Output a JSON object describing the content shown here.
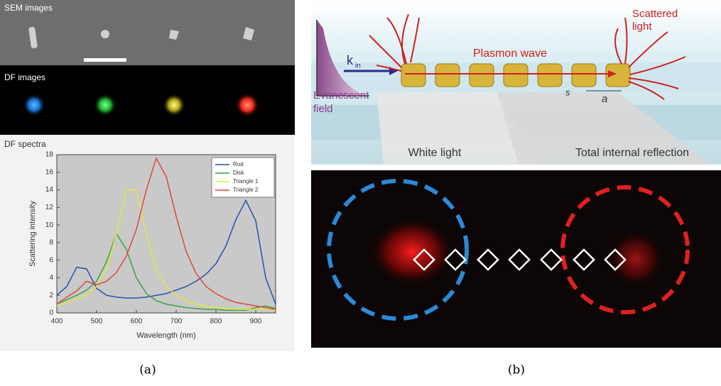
{
  "chart_data": {
    "type": "line",
    "title": "DF spectra",
    "x_label": "Wavelength (nm)",
    "y_label": "Scattering intensity",
    "x": [
      400,
      425,
      450,
      475,
      500,
      525,
      550,
      575,
      600,
      625,
      650,
      675,
      700,
      725,
      750,
      775,
      800,
      825,
      850,
      875,
      900,
      925,
      950
    ],
    "series": [
      {
        "name": "Rod",
        "color": "#2a4fb0",
        "values": [
          2.0,
          3.0,
          5.2,
          5.0,
          2.8,
          2.0,
          1.8,
          1.7,
          1.7,
          1.8,
          2.0,
          2.2,
          2.6,
          3.0,
          3.6,
          4.4,
          5.6,
          7.6,
          10.6,
          12.8,
          10.5,
          4.0,
          1.0
        ]
      },
      {
        "name": "Disk",
        "color": "#3aa346",
        "values": [
          1.0,
          1.5,
          2.0,
          2.6,
          3.6,
          5.8,
          9.0,
          7.2,
          4.0,
          2.2,
          1.4,
          1.0,
          0.8,
          0.6,
          0.5,
          0.4,
          0.4,
          0.3,
          0.3,
          0.3,
          0.6,
          0.8,
          0.5
        ]
      },
      {
        "name": "Triangle 1",
        "color": "#e6e63a",
        "values": [
          0.8,
          1.2,
          1.6,
          2.0,
          3.0,
          5.0,
          9.0,
          14.0,
          14.0,
          9.0,
          5.0,
          3.0,
          2.0,
          1.4,
          1.0,
          0.8,
          0.6,
          0.5,
          0.4,
          0.4,
          0.4,
          0.5,
          0.3
        ]
      },
      {
        "name": "Triangle 2",
        "color": "#e0453e",
        "values": [
          1.0,
          1.8,
          2.5,
          3.6,
          3.2,
          3.6,
          4.6,
          6.5,
          9.5,
          14.0,
          17.6,
          15.5,
          11.0,
          7.0,
          4.5,
          3.0,
          2.2,
          1.6,
          1.2,
          1.0,
          0.8,
          0.6,
          0.4
        ]
      }
    ],
    "xlim": [
      400,
      950
    ],
    "xticks": [
      400,
      500,
      600,
      700,
      800,
      900
    ],
    "ylim": [
      0,
      18
    ],
    "yticks": [
      0,
      2,
      4,
      6,
      8,
      10,
      12,
      14,
      16,
      18
    ],
    "legend": "top-right"
  },
  "panel_a": {
    "sem_label": "SEM images",
    "df_label": "DF images",
    "caption": "(a)"
  },
  "panel_b": {
    "k": "k",
    "k_sub": "in",
    "plasmon": "Plasmon wave",
    "scattered_1": "Scattered",
    "scattered_2": "light",
    "evanescent_1": "Evanescent",
    "evanescent_2": "field",
    "s": "s",
    "a": "a",
    "white_light": "White light",
    "tir": "Total internal reflection",
    "caption": "(b)"
  }
}
